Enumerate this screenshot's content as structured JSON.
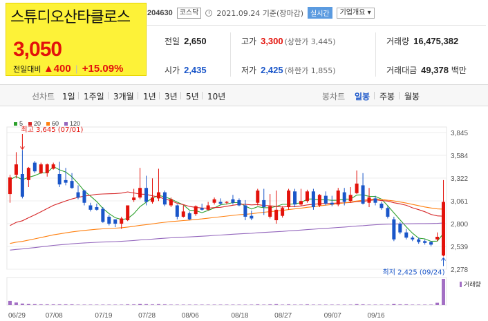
{
  "header": {
    "stock_name": "스튜디오산타클로스",
    "price": "3,050",
    "change_label": "전일대비",
    "change_amount": "▲400",
    "change_pct": "+15.09%",
    "code": "204630",
    "market": "코스닥",
    "date": "2021.09.24 기준(장마감)",
    "realtime": "실시간",
    "company_info": "기업개요 ▾"
  },
  "stats": {
    "prev_close": {
      "label": "전일",
      "value": "2,650"
    },
    "open": {
      "label": "시가",
      "value": "2,435"
    },
    "high": {
      "label": "고가",
      "value": "3,300",
      "sub": "(상한가 3,445)"
    },
    "low": {
      "label": "저가",
      "value": "2,425",
      "sub": "(하한가 1,855)"
    },
    "volume": {
      "label": "거래량",
      "value": "16,475,382"
    },
    "trade_value": {
      "label": "거래대금",
      "value": "49,378",
      "unit": "백만"
    }
  },
  "toolbar": {
    "line_chart_label": "선차트",
    "periods": [
      "1일",
      "1주일",
      "3개월",
      "1년",
      "3년",
      "5년",
      "10년"
    ],
    "candle_chart_label": "봉차트",
    "candle_periods": [
      "일봉",
      "주봉",
      "월봉"
    ],
    "active_candle": "일봉"
  },
  "legend": [
    {
      "label": "5",
      "color": "#2ca02c"
    },
    {
      "label": "20",
      "color": "#d62728"
    },
    {
      "label": "60",
      "color": "#ff7f0e"
    },
    {
      "label": "120",
      "color": "#9467bd"
    }
  ],
  "colors": {
    "up": "#e3120b",
    "down": "#1a56c9"
  },
  "chart_data": {
    "type": "candlestick",
    "y_ticks": [
      "3,845",
      "3,584",
      "3,322",
      "3,061",
      "2,800",
      "2,539",
      "2,278"
    ],
    "ylim": [
      2278,
      3845
    ],
    "x_labels": [
      "06/29",
      "07/08",
      "07/19",
      "07/28",
      "08/06",
      "08/18",
      "08/27",
      "09/07",
      "09/16"
    ],
    "high_annotation": "최고 3,645 (07/01)",
    "low_annotation": "최저 2,425 (09/24)",
    "volume_label": "거래량",
    "candles": [
      {
        "o": 3140,
        "c": 3330,
        "h": 3360,
        "l": 3040
      },
      {
        "o": 3360,
        "c": 3480,
        "h": 3620,
        "l": 3320
      },
      {
        "o": 3370,
        "c": 3110,
        "h": 3645,
        "l": 3090
      },
      {
        "o": 3300,
        "c": 3440,
        "h": 3450,
        "l": 3220
      },
      {
        "o": 3500,
        "c": 3400,
        "h": 3520,
        "l": 3380
      },
      {
        "o": 3380,
        "c": 3480,
        "h": 3500,
        "l": 3370
      },
      {
        "o": 3380,
        "c": 3480,
        "h": 3490,
        "l": 3340
      },
      {
        "o": 3430,
        "c": 3480,
        "h": 3500,
        "l": 3420
      },
      {
        "o": 3370,
        "c": 3250,
        "h": 3510,
        "l": 3220
      },
      {
        "o": 3300,
        "c": 3270,
        "h": 3440,
        "l": 3240
      },
      {
        "o": 3290,
        "c": 3210,
        "h": 3380,
        "l": 3200
      },
      {
        "o": 3160,
        "c": 3100,
        "h": 3240,
        "l": 3080
      },
      {
        "o": 3180,
        "c": 3040,
        "h": 3190,
        "l": 3010
      },
      {
        "o": 3010,
        "c": 2960,
        "h": 3040,
        "l": 2940
      },
      {
        "o": 2990,
        "c": 2960,
        "h": 3030,
        "l": 2950
      },
      {
        "o": 2970,
        "c": 2820,
        "h": 2990,
        "l": 2810
      },
      {
        "o": 2880,
        "c": 2800,
        "h": 2900,
        "l": 2780
      },
      {
        "o": 2850,
        "c": 2800,
        "h": 2850,
        "l": 2760
      },
      {
        "o": 2800,
        "c": 2860,
        "h": 2880,
        "l": 2740
      },
      {
        "o": 2840,
        "c": 3010,
        "h": 3010,
        "l": 2830
      },
      {
        "o": 3070,
        "c": 3100,
        "h": 3200,
        "l": 3050
      },
      {
        "o": 3100,
        "c": 3210,
        "h": 3440,
        "l": 3080
      },
      {
        "o": 3210,
        "c": 3050,
        "h": 3350,
        "l": 3010
      },
      {
        "o": 3050,
        "c": 3100,
        "h": 3320,
        "l": 3030
      },
      {
        "o": 3090,
        "c": 3160,
        "h": 3430,
        "l": 3060
      },
      {
        "o": 3160,
        "c": 3020,
        "h": 3180,
        "l": 3000
      },
      {
        "o": 3010,
        "c": 3080,
        "h": 3100,
        "l": 2990
      },
      {
        "o": 3010,
        "c": 2880,
        "h": 3020,
        "l": 2850
      },
      {
        "o": 2880,
        "c": 2940,
        "h": 3010,
        "l": 2870
      },
      {
        "o": 2920,
        "c": 2850,
        "h": 2940,
        "l": 2840
      },
      {
        "o": 2910,
        "c": 3000,
        "h": 3010,
        "l": 2890
      },
      {
        "o": 2980,
        "c": 2960,
        "h": 3030,
        "l": 2950
      },
      {
        "o": 2960,
        "c": 3010,
        "h": 3050,
        "l": 2950
      },
      {
        "o": 3040,
        "c": 3080,
        "h": 3100,
        "l": 3020
      },
      {
        "o": 3050,
        "c": 3030,
        "h": 3090,
        "l": 3010
      },
      {
        "o": 3040,
        "c": 3050,
        "h": 3060,
        "l": 3020
      },
      {
        "o": 3080,
        "c": 3040,
        "h": 3130,
        "l": 3020
      },
      {
        "o": 3070,
        "c": 3010,
        "h": 3090,
        "l": 3000
      },
      {
        "o": 3010,
        "c": 2880,
        "h": 3070,
        "l": 2840
      },
      {
        "o": 2890,
        "c": 2860,
        "h": 2950,
        "l": 2840
      },
      {
        "o": 3040,
        "c": 3180,
        "h": 3200,
        "l": 3010
      },
      {
        "o": 3070,
        "c": 2990,
        "h": 3200,
        "l": 2900
      },
      {
        "o": 2880,
        "c": 3000,
        "h": 3140,
        "l": 2860
      },
      {
        "o": 2840,
        "c": 2960,
        "h": 3180,
        "l": 2800
      },
      {
        "o": 2890,
        "c": 2980,
        "h": 3000,
        "l": 2870
      },
      {
        "o": 2990,
        "c": 3180,
        "h": 3200,
        "l": 2960
      },
      {
        "o": 3170,
        "c": 3020,
        "h": 3200,
        "l": 2990
      },
      {
        "o": 3020,
        "c": 3060,
        "h": 3200,
        "l": 3000
      },
      {
        "o": 3060,
        "c": 3170,
        "h": 3190,
        "l": 3040
      },
      {
        "o": 3170,
        "c": 2990,
        "h": 3200,
        "l": 2960
      },
      {
        "o": 3010,
        "c": 3130,
        "h": 3140,
        "l": 2990
      },
      {
        "o": 3120,
        "c": 3030,
        "h": 3170,
        "l": 3010
      },
      {
        "o": 3040,
        "c": 3020,
        "h": 3120,
        "l": 3000
      },
      {
        "o": 3020,
        "c": 3180,
        "h": 3210,
        "l": 3000
      },
      {
        "o": 3160,
        "c": 3050,
        "h": 3210,
        "l": 3010
      },
      {
        "o": 3060,
        "c": 3130,
        "h": 3220,
        "l": 3040
      },
      {
        "o": 3150,
        "c": 3260,
        "h": 3410,
        "l": 3140
      },
      {
        "o": 3240,
        "c": 3030,
        "h": 3380,
        "l": 3020
      },
      {
        "o": 3040,
        "c": 3100,
        "h": 3210,
        "l": 2990
      },
      {
        "o": 3090,
        "c": 3040,
        "h": 3120,
        "l": 3010
      },
      {
        "o": 3030,
        "c": 2980,
        "h": 3050,
        "l": 2960
      },
      {
        "o": 2980,
        "c": 2880,
        "h": 3000,
        "l": 2860
      },
      {
        "o": 2850,
        "c": 2620,
        "h": 2880,
        "l": 2600
      },
      {
        "o": 2800,
        "c": 2700,
        "h": 2820,
        "l": 2680
      },
      {
        "o": 2700,
        "c": 2640,
        "h": 2740,
        "l": 2620
      },
      {
        "o": 2640,
        "c": 2620,
        "h": 2660,
        "l": 2600
      },
      {
        "o": 2620,
        "c": 2590,
        "h": 2640,
        "l": 2570
      },
      {
        "o": 2600,
        "c": 2580,
        "h": 2620,
        "l": 2560
      },
      {
        "o": 2590,
        "c": 2560,
        "h": 2600,
        "l": 2540
      },
      {
        "o": 2620,
        "c": 2650,
        "h": 2700,
        "l": 2600
      },
      {
        "o": 2435,
        "c": 3050,
        "h": 3300,
        "l": 2425
      }
    ],
    "volumes": [
      0.16,
      0.1,
      0.06,
      0.05,
      0.04,
      0.03,
      0.03,
      0.03,
      0.03,
      0.03,
      0.03,
      0.02,
      0.02,
      0.02,
      0.02,
      0.02,
      0.02,
      0.02,
      0.02,
      0.03,
      0.03,
      0.05,
      0.04,
      0.03,
      0.04,
      0.03,
      0.02,
      0.02,
      0.02,
      0.02,
      0.02,
      0.02,
      0.02,
      0.02,
      0.02,
      0.02,
      0.02,
      0.02,
      0.02,
      0.02,
      0.03,
      0.02,
      0.03,
      0.04,
      0.02,
      0.03,
      0.02,
      0.02,
      0.03,
      0.02,
      0.02,
      0.02,
      0.02,
      0.02,
      0.02,
      0.02,
      0.04,
      0.03,
      0.02,
      0.02,
      0.02,
      0.02,
      0.05,
      0.03,
      0.03,
      0.02,
      0.02,
      0.02,
      0.02,
      0.09,
      1.0
    ]
  }
}
